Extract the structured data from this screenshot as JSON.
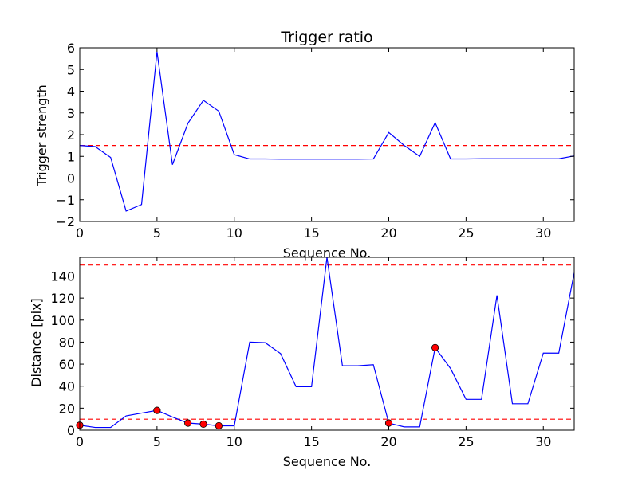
{
  "chart_data": [
    {
      "type": "line",
      "title": "Trigger ratio",
      "xlabel": "Sequence No.",
      "ylabel": "Trigger strength",
      "xlim": [
        0,
        32
      ],
      "ylim": [
        -2,
        6
      ],
      "xticks": [
        0,
        5,
        10,
        15,
        20,
        25,
        30
      ],
      "yticks": [
        -2,
        -1,
        0,
        1,
        2,
        3,
        4,
        5,
        6
      ],
      "grid": false,
      "series": [
        {
          "color": "#0000ff",
          "x": [
            0,
            1,
            2,
            3,
            4,
            5,
            6,
            7,
            8,
            9,
            10,
            11,
            12,
            13,
            14,
            15,
            16,
            17,
            18,
            19,
            20,
            21,
            22,
            23,
            24,
            25,
            26,
            27,
            28,
            29,
            30,
            31,
            32
          ],
          "y": [
            1.5,
            1.45,
            0.95,
            -1.52,
            -1.22,
            5.82,
            0.62,
            2.52,
            3.58,
            3.08,
            1.08,
            0.88,
            0.88,
            0.87,
            0.87,
            0.87,
            0.87,
            0.87,
            0.87,
            0.88,
            2.1,
            1.5,
            1.0,
            2.55,
            0.88,
            0.88,
            0.89,
            0.89,
            0.89,
            0.89,
            0.89,
            0.89,
            1.02
          ]
        }
      ],
      "reference_lines": [
        {
          "y": 1.5,
          "color": "#ff0000",
          "style": "dashed"
        }
      ]
    },
    {
      "type": "line",
      "title": "",
      "xlabel": "Sequence No.",
      "ylabel": "Distance [pix]",
      "xlim": [
        0,
        32
      ],
      "ylim": [
        0,
        157
      ],
      "xticks": [
        0,
        5,
        10,
        15,
        20,
        25,
        30
      ],
      "yticks": [
        0,
        20,
        40,
        60,
        80,
        100,
        120,
        140
      ],
      "grid": false,
      "series": [
        {
          "color": "#0000ff",
          "x": [
            0,
            1,
            2,
            3,
            4,
            5,
            6,
            7,
            8,
            9,
            10,
            11,
            12,
            13,
            14,
            15,
            16,
            17,
            18,
            19,
            20,
            21,
            22,
            23,
            24,
            25,
            26,
            27,
            28,
            29,
            30,
            31,
            32
          ],
          "y": [
            4.5,
            2.5,
            2.5,
            13,
            15.5,
            18,
            12,
            6.5,
            5.5,
            4,
            4,
            80,
            79.5,
            69.5,
            39.5,
            39.5,
            157,
            58.5,
            58.5,
            59.5,
            6.5,
            3,
            3,
            75,
            56,
            28,
            28,
            122.5,
            24,
            24,
            70,
            70,
            143
          ]
        }
      ],
      "markers": {
        "color": "#ff0000",
        "x": [
          0,
          5,
          7,
          8,
          9,
          20,
          23
        ],
        "y": [
          4.5,
          18,
          6.5,
          5.5,
          4,
          6.5,
          75
        ]
      },
      "reference_lines": [
        {
          "y": 10,
          "color": "#ff0000",
          "style": "dashed"
        },
        {
          "y": 150,
          "color": "#ff0000",
          "style": "dashed"
        }
      ]
    }
  ]
}
